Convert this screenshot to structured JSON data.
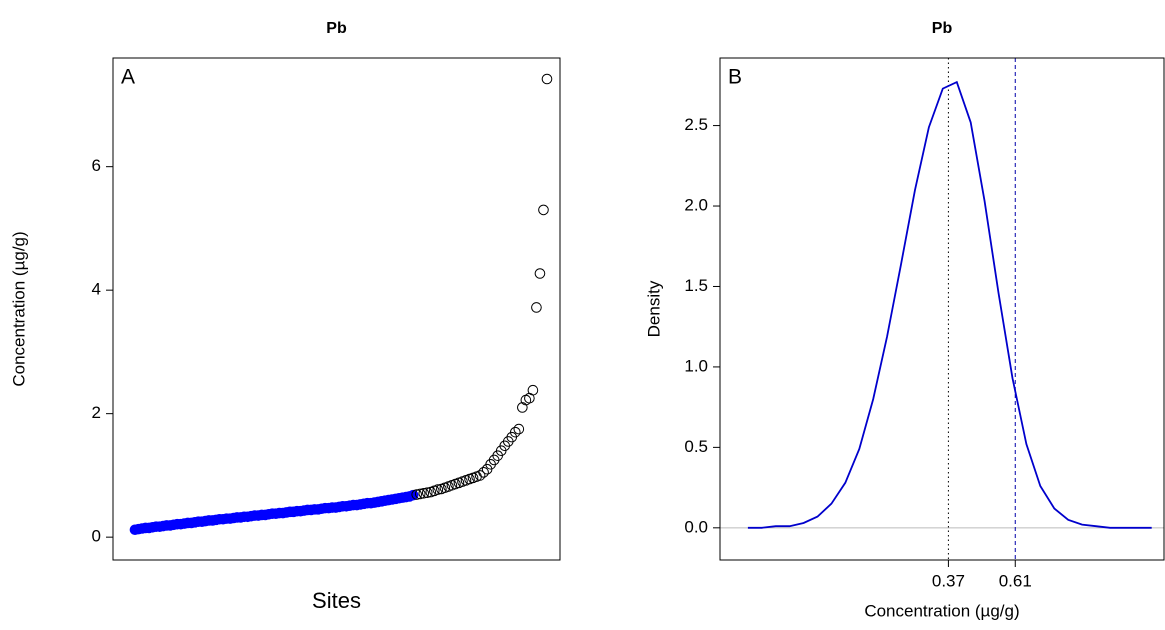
{
  "chart_data": [
    {
      "type": "scatter",
      "title": "Pb",
      "annotation": "A",
      "xlabel": "Sites",
      "ylabel": "Concentration (µg/g)",
      "ylim": [
        -0.37,
        7.76
      ],
      "yticks": [
        0,
        2,
        4,
        6
      ],
      "series": [
        {
          "color": "#0000ff",
          "fill": "#0000ff",
          "values": [
            0.12,
            0.13,
            0.14,
            0.15,
            0.15,
            0.16,
            0.17,
            0.17,
            0.18,
            0.19,
            0.19,
            0.2,
            0.21,
            0.21,
            0.22,
            0.23,
            0.23,
            0.24,
            0.25,
            0.25,
            0.26,
            0.27,
            0.27,
            0.28,
            0.29,
            0.29,
            0.3,
            0.3,
            0.31,
            0.32,
            0.32,
            0.33,
            0.33,
            0.34,
            0.35,
            0.35,
            0.36,
            0.36,
            0.37,
            0.38,
            0.38,
            0.39,
            0.39,
            0.4,
            0.41,
            0.41,
            0.42,
            0.42,
            0.43,
            0.44,
            0.44,
            0.45,
            0.45,
            0.46,
            0.47,
            0.47,
            0.48,
            0.48,
            0.49,
            0.5,
            0.5,
            0.51,
            0.52,
            0.52,
            0.53,
            0.54,
            0.55,
            0.55,
            0.56,
            0.57,
            0.58,
            0.59,
            0.6,
            0.61,
            0.62,
            0.63,
            0.64,
            0.65,
            0.66,
            0.68
          ]
        },
        {
          "color": "#000000",
          "fill": "none",
          "values": [
            0.69,
            0.7,
            0.71,
            0.72,
            0.73,
            0.75,
            0.77,
            0.78,
            0.8,
            0.82,
            0.84,
            0.86,
            0.88,
            0.9,
            0.92,
            0.94,
            0.96,
            0.98,
            1.0,
            1.05,
            1.1,
            1.18,
            1.25,
            1.32,
            1.4,
            1.48,
            1.55,
            1.62,
            1.7,
            1.75,
            2.1,
            2.22,
            2.25,
            2.38,
            3.72,
            4.27,
            5.3,
            7.42
          ]
        }
      ]
    },
    {
      "type": "line",
      "title": "Pb",
      "annotation": "B",
      "xlabel": "Concentration (µg/g)",
      "ylabel": "Density",
      "xlim": [
        -0.45,
        1.144
      ],
      "ylim": [
        -0.2,
        2.92
      ],
      "xticks": [
        0.37,
        0.61
      ],
      "yticks": [
        {
          "value": 0,
          "label": "0.0"
        },
        0.5,
        {
          "value": 1,
          "label": "1.0"
        },
        1.5,
        {
          "value": 2,
          "label": "2.0"
        },
        2.5
      ],
      "series": [
        {
          "color": "#0000cc",
          "x": [
            -0.35,
            -0.3,
            -0.25,
            -0.2,
            -0.15,
            -0.1,
            -0.05,
            0,
            0.05,
            0.1,
            0.15,
            0.2,
            0.25,
            0.3,
            0.35,
            0.4,
            0.45,
            0.5,
            0.55,
            0.6,
            0.65,
            0.7,
            0.75,
            0.8,
            0.85,
            0.9,
            0.95,
            1,
            1.05,
            1.1
          ],
          "values": [
            0,
            0,
            0.01,
            0.01,
            0.03,
            0.07,
            0.15,
            0.28,
            0.49,
            0.8,
            1.19,
            1.64,
            2.1,
            2.49,
            2.73,
            2.77,
            2.52,
            2.03,
            1.46,
            0.93,
            0.52,
            0.26,
            0.12,
            0.05,
            0.02,
            0.01,
            0,
            0,
            0,
            0
          ]
        }
      ]
    }
  ]
}
